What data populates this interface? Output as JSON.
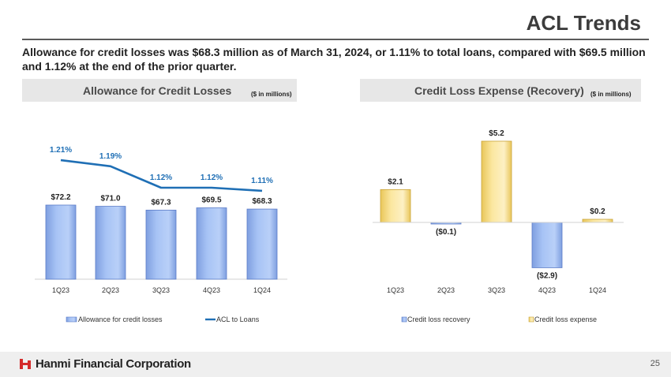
{
  "slide": {
    "title": "ACL Trends",
    "summary": "Allowance for credit losses was $68.3 million as of March 31, 2024, or 1.11% to total loans, compared with $69.5 million and 1.12% at the end of the prior quarter.",
    "page_number": "25"
  },
  "footer": {
    "company": "Hanmi Financial Corporation"
  },
  "colors": {
    "bar_blue": "#a7c3f5",
    "bar_yellow": "#fbe7a0",
    "line_blue": "#1f6fb5"
  },
  "chart_data": [
    {
      "type": "bar",
      "panel_title": "Allowance for Credit Losses",
      "unit_label": "($ in millions)",
      "categories": [
        "1Q23",
        "2Q23",
        "3Q23",
        "4Q23",
        "1Q24"
      ],
      "series": [
        {
          "name": "Allowance for credit losses",
          "kind": "bar",
          "values": [
            72.2,
            71.0,
            67.3,
            69.5,
            68.3
          ],
          "labels": [
            "$72.2",
            "$71.0",
            "$67.3",
            "$69.5",
            "$68.3"
          ]
        },
        {
          "name": "ACL to Loans",
          "kind": "line",
          "values": [
            1.21,
            1.19,
            1.12,
            1.12,
            1.11
          ],
          "labels": [
            "1.21%",
            "1.19%",
            "1.12%",
            "1.12%",
            "1.11%"
          ]
        }
      ],
      "legend": [
        "Allowance for credit losses",
        "ACL to Loans"
      ]
    },
    {
      "type": "bar",
      "panel_title": "Credit Loss Expense (Recovery)",
      "unit_label": "($ in millions)",
      "categories": [
        "1Q23",
        "2Q23",
        "3Q23",
        "4Q23",
        "1Q24"
      ],
      "values": [
        2.1,
        -0.1,
        5.2,
        -2.9,
        0.2
      ],
      "labels": [
        "$2.1",
        "($0.1)",
        "$5.2",
        "($2.9)",
        "$0.2"
      ],
      "legend": [
        "Credit loss recovery",
        "Credit loss expense"
      ]
    }
  ]
}
